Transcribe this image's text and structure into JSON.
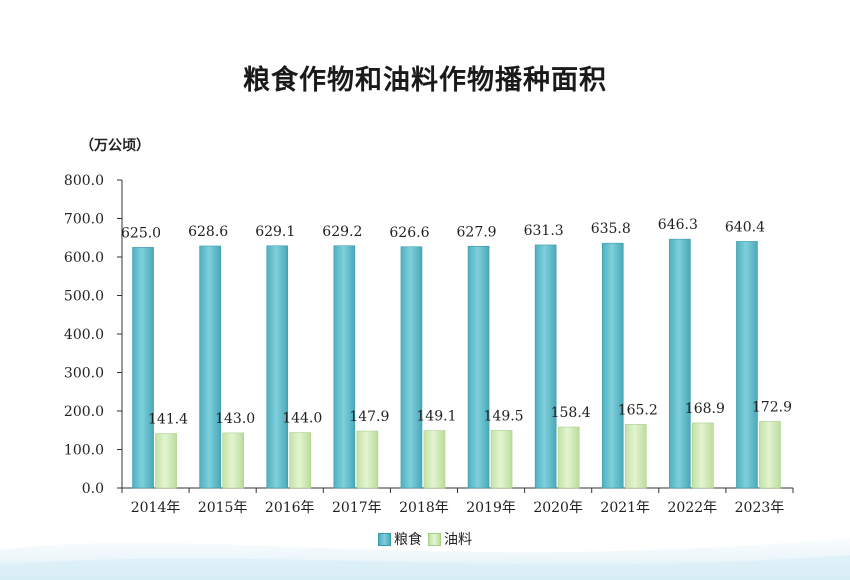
{
  "title": "粮食作物和油料作物播种面积",
  "unit": "（万公顷）",
  "colors": {
    "grain": "#5fbfcd",
    "grain_edge": "#3a9aab",
    "oil": "#cfe9b4",
    "oil_edge": "#a8cf8a"
  },
  "chart_data": {
    "type": "bar",
    "categories": [
      "2014年",
      "2015年",
      "2016年",
      "2017年",
      "2018年",
      "2019年",
      "2020年",
      "2021年",
      "2022年",
      "2023年"
    ],
    "series": [
      {
        "name": "粮食",
        "values": [
          625.0,
          628.6,
          629.1,
          629.2,
          626.6,
          627.9,
          631.3,
          635.8,
          646.3,
          640.4
        ]
      },
      {
        "name": "油料",
        "values": [
          141.4,
          143.0,
          144.0,
          147.9,
          149.1,
          149.5,
          158.4,
          165.2,
          168.9,
          172.9
        ]
      }
    ],
    "value_labels": [
      [
        "625.0",
        "628.6",
        "629.1",
        "629.2",
        "626.6",
        "627.9",
        "631.3",
        "635.8",
        "646.3",
        "640.4"
      ],
      [
        "141.4",
        "143.0",
        "144.0",
        "147.9",
        "149.1",
        "149.5",
        "158.4",
        "165.2",
        "168.9",
        "172.9"
      ]
    ],
    "yticks": [
      "0.0",
      "100.0",
      "200.0",
      "300.0",
      "400.0",
      "500.0",
      "600.0",
      "700.0",
      "800.0"
    ],
    "ylim": [
      0,
      800
    ],
    "grid": false,
    "legend_position": "bottom-center"
  }
}
